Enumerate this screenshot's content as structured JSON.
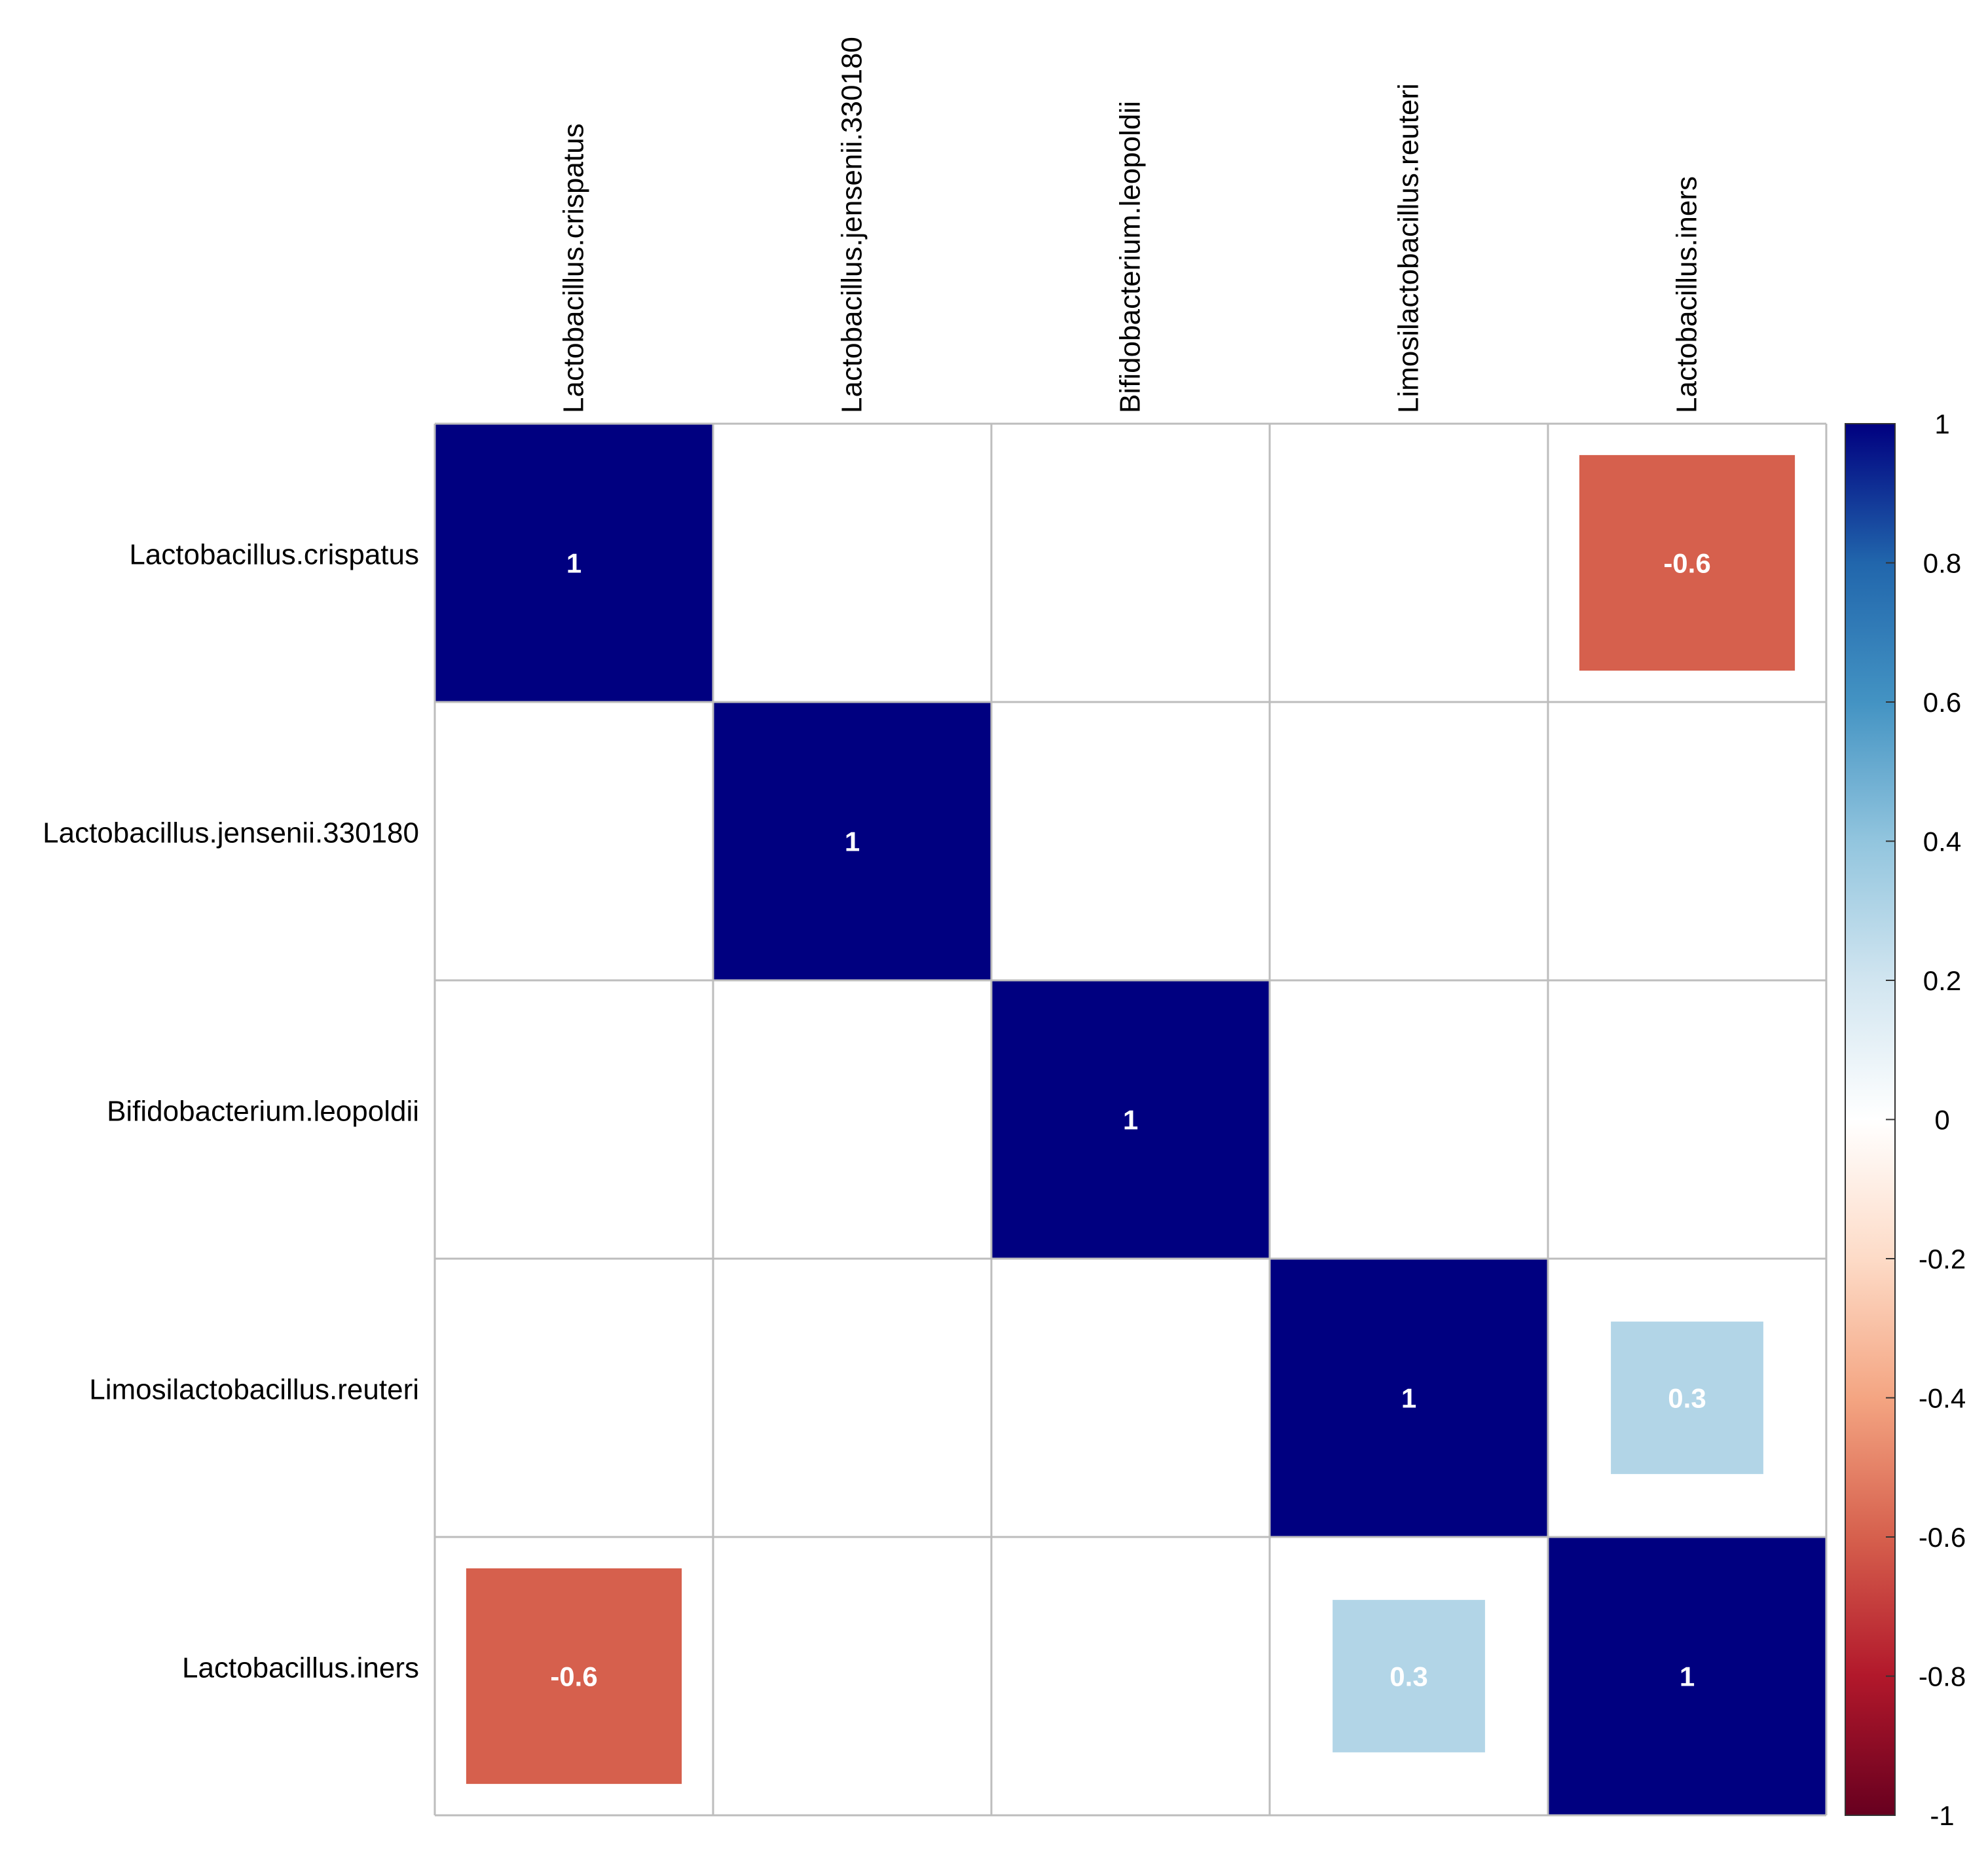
{
  "chart_data": {
    "type": "heatmap",
    "title": "",
    "method": "square",
    "variables": [
      "Lactobacillus.crispatus",
      "Lactobacillus.jensenii.330180",
      "Bifidobacterium.leopoldii",
      "Limosilactobacillus.reuteri",
      "Lactobacillus.iners"
    ],
    "matrix": [
      [
        1,
        0,
        0,
        0,
        -0.6
      ],
      [
        0,
        1,
        0,
        0,
        0
      ],
      [
        0,
        0,
        1,
        0,
        0
      ],
      [
        0,
        0,
        0,
        1,
        0.3
      ],
      [
        -0.6,
        0,
        0,
        0.3,
        1
      ]
    ],
    "labels": [
      [
        "1",
        "",
        "",
        "",
        "-0.6"
      ],
      [
        "",
        "1",
        "",
        "",
        ""
      ],
      [
        "",
        "",
        "1",
        "",
        ""
      ],
      [
        "",
        "",
        "",
        "1",
        "0.3"
      ],
      [
        "-0.6",
        "",
        "",
        "0.3",
        "1"
      ]
    ],
    "colorbar": {
      "range": [
        -1,
        1
      ],
      "ticks": [
        1,
        0.8,
        0.6,
        0.4,
        0.2,
        0,
        -0.2,
        -0.4,
        -0.6,
        -0.8,
        -1
      ],
      "tick_labels": [
        "1",
        "0.8",
        "0.6",
        "0.4",
        "0.2",
        "0",
        "-0.2",
        "-0.4",
        "-0.6",
        "-0.8",
        "-1"
      ],
      "colors": [
        "#67001F",
        "#B2182B",
        "#D6604D",
        "#F4A582",
        "#FDDBC7",
        "#FFFFFF",
        "#D1E5F0",
        "#92C5DE",
        "#4393C3",
        "#2166AC",
        "#000080"
      ]
    },
    "grid": true,
    "legend_position": "right"
  },
  "colors": {
    "positive_strong": "#020275",
    "negative_mid": "#BC3C40",
    "positive_light": "#9A99D3",
    "grid": "#BDBDBD",
    "label": "#000000",
    "cell_text": "#FFFFFF"
  }
}
